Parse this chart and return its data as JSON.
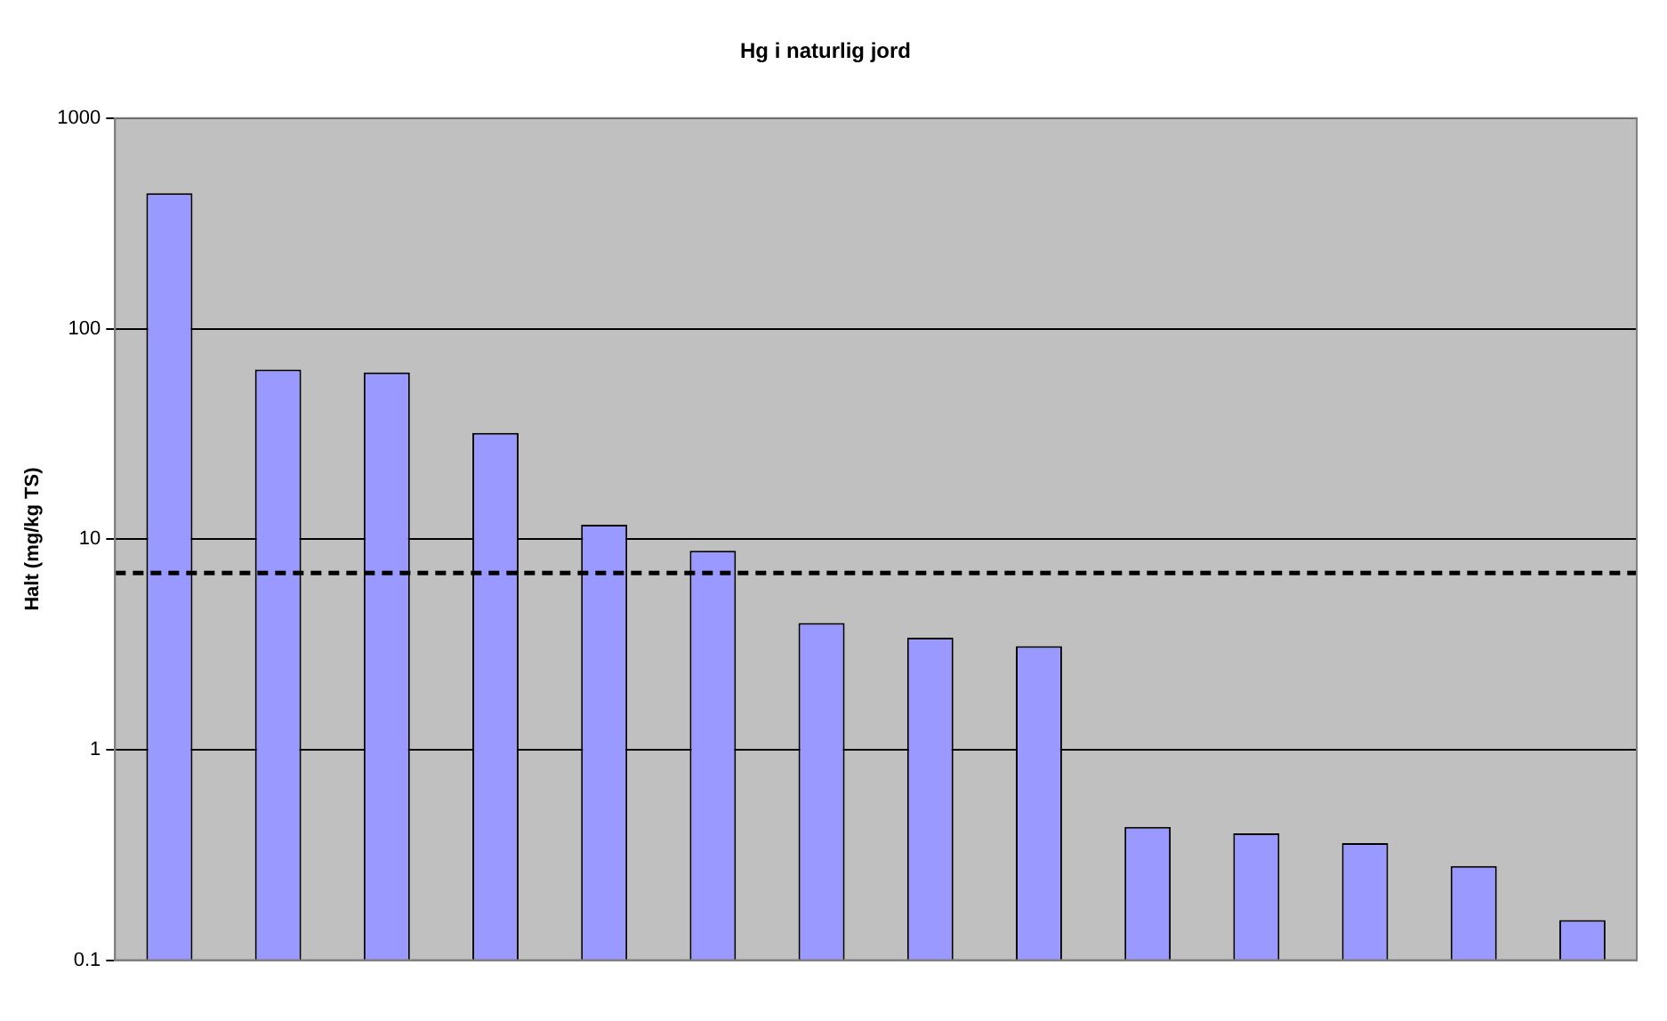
{
  "chart_data": {
    "type": "bar",
    "title": "Hg i naturlig jord",
    "ylabel": "Halt (mg/kg TS)",
    "categories": [
      null,
      null,
      null,
      null,
      null,
      null,
      null,
      null,
      null,
      null,
      null,
      null,
      null,
      null
    ],
    "values": [
      440,
      64,
      62,
      32,
      11.7,
      8.8,
      4.0,
      3.4,
      3.1,
      0.43,
      0.4,
      0.36,
      0.28,
      0.155
    ],
    "color": "#9999ff",
    "log": true,
    "ylim": [
      0.1,
      1000
    ],
    "yticks": [
      0.1,
      1,
      10,
      100,
      1000
    ],
    "grid": "y",
    "legend": false,
    "ref_lines": [
      {
        "axis": "y",
        "value": 6.9,
        "color": "#000000",
        "line_style": "dashed"
      }
    ]
  }
}
